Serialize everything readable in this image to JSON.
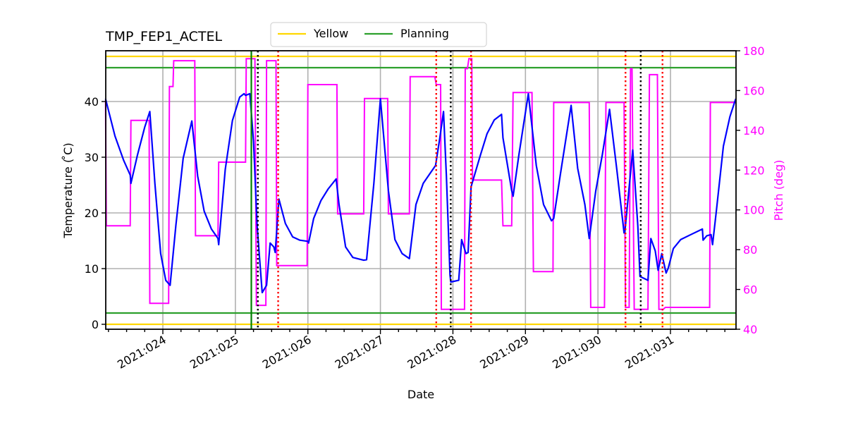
{
  "chart_data": {
    "type": "line",
    "title": "TMP_FEP1_ACTEL",
    "xlabel": "Date",
    "ylabel": "Temperature ($^\\circ$C)",
    "ylabel_display": "Temperature ( ̊C)",
    "ylabel_right": "Pitch (deg)",
    "xlim": [
      23.21,
      31.9
    ],
    "ylim": [
      -1,
      49
    ],
    "ylim_right": [
      40,
      180
    ],
    "grid": true,
    "legend_position": "upper center (above axes)",
    "x_ticks": [
      "2021:024",
      "2021:025",
      "2021:026",
      "2021:027",
      "2021:028",
      "2021:029",
      "2021:030",
      "2021:031"
    ],
    "y_ticks": [
      0,
      10,
      20,
      30,
      40
    ],
    "y_ticks_right": [
      40,
      60,
      80,
      100,
      120,
      140,
      160,
      180
    ],
    "legend": [
      {
        "label": "Yellow",
        "color": "#ffd700"
      },
      {
        "label": "Planning",
        "color": "#2ca02c"
      }
    ],
    "limits": {
      "yellow": [
        0,
        48
      ],
      "planning": [
        2,
        46
      ]
    },
    "vertical_markers": {
      "green_solid": [
        25.22
      ],
      "black_dotted": [
        25.31,
        27.97,
        30.59
      ],
      "red_dotted": [
        25.59,
        27.77,
        28.25,
        30.38,
        30.89
      ]
    },
    "series": [
      {
        "name": "Temperature",
        "axis": "left",
        "color": "#0000ff",
        "x": [
          23.21,
          23.34,
          23.46,
          23.55,
          23.56,
          23.65,
          23.75,
          23.82,
          23.89,
          23.97,
          24.04,
          24.1,
          24.18,
          24.28,
          24.4,
          24.48,
          24.57,
          24.67,
          24.76,
          24.77,
          24.86,
          24.96,
          25.06,
          25.12,
          25.14,
          25.2,
          25.25,
          25.3,
          25.37,
          25.43,
          25.48,
          25.53,
          25.55,
          25.6,
          25.69,
          25.79,
          25.89,
          26.0,
          26.01,
          26.08,
          26.18,
          26.28,
          26.39,
          26.43,
          26.52,
          26.62,
          26.77,
          26.81,
          26.91,
          27.0,
          27.11,
          27.2,
          27.3,
          27.4,
          27.49,
          27.59,
          27.69,
          27.76,
          27.82,
          27.87,
          27.91,
          27.96,
          27.97,
          28.08,
          28.12,
          28.18,
          28.21,
          28.25,
          28.38,
          28.47,
          28.57,
          28.67,
          28.69,
          28.81,
          28.83,
          28.91,
          29.04,
          29.15,
          29.25,
          29.36,
          29.39,
          29.48,
          29.63,
          29.72,
          29.82,
          29.88,
          29.97,
          30.06,
          30.16,
          30.26,
          30.36,
          30.37,
          30.48,
          30.55,
          30.58,
          30.69,
          30.73,
          30.79,
          30.83,
          30.88,
          30.94,
          30.97,
          31.04,
          31.14,
          31.28,
          31.44,
          31.45,
          31.5,
          31.56,
          31.58,
          31.63,
          31.73,
          31.82,
          31.9
        ],
        "values": [
          40.5,
          33.8,
          29.4,
          26.8,
          25.3,
          30.4,
          35.4,
          38.2,
          25.3,
          12.7,
          7.9,
          7.0,
          17.8,
          29.8,
          36.5,
          26.6,
          20.3,
          17.1,
          15.4,
          14.3,
          27.8,
          36.6,
          40.8,
          41.4,
          41.1,
          41.4,
          32.9,
          17.7,
          5.7,
          7.0,
          14.6,
          13.9,
          12.9,
          22.5,
          18.1,
          15.7,
          15.1,
          14.9,
          14.6,
          19.0,
          22.2,
          24.3,
          26.1,
          21.5,
          13.9,
          12.0,
          11.5,
          11.6,
          25.3,
          40.5,
          24.0,
          15.2,
          12.7,
          11.8,
          21.5,
          25.3,
          27.2,
          28.5,
          33.5,
          38.2,
          26.6,
          8.9,
          7.6,
          7.9,
          15.2,
          12.7,
          12.9,
          24.7,
          30.4,
          34.2,
          36.7,
          37.7,
          33.5,
          24.0,
          23.0,
          30.4,
          41.4,
          28.5,
          21.5,
          18.6,
          19.0,
          26.8,
          39.3,
          28.0,
          21.5,
          15.4,
          24.0,
          30.4,
          38.6,
          27.8,
          16.4,
          16.4,
          31.3,
          17.7,
          8.6,
          7.9,
          15.4,
          13.2,
          9.7,
          12.7,
          9.2,
          10.1,
          13.6,
          15.2,
          16.1,
          17.1,
          15.1,
          15.9,
          16.1,
          14.3,
          20.0,
          32.0,
          37.3,
          40.5
        ]
      },
      {
        "name": "Pitch",
        "axis": "right",
        "color": "#ff00ff",
        "x": [
          23.21,
          23.22,
          23.55,
          23.56,
          23.81,
          23.82,
          24.08,
          24.09,
          24.14,
          24.15,
          24.44,
          24.45,
          24.76,
          24.77,
          25.14,
          25.15,
          25.27,
          25.29,
          25.42,
          25.43,
          25.56,
          25.57,
          25.99,
          26.0,
          26.4,
          26.41,
          26.77,
          26.78,
          27.1,
          27.11,
          27.4,
          27.41,
          27.75,
          27.77,
          27.83,
          27.84,
          28.0,
          28.03,
          28.16,
          28.17,
          28.2,
          28.22,
          28.26,
          28.27,
          28.67,
          28.69,
          28.81,
          28.83,
          29.09,
          29.11,
          29.38,
          29.39,
          29.88,
          29.9,
          30.09,
          30.11,
          30.36,
          30.38,
          30.43,
          30.45,
          30.47,
          30.5,
          30.69,
          30.71,
          30.82,
          30.84,
          30.9,
          30.93,
          31.54,
          31.55,
          31.9
        ],
        "values": [
          155,
          92,
          92,
          145,
          145,
          53,
          53,
          162,
          162,
          175,
          175,
          87,
          87,
          124,
          124,
          176,
          176,
          52,
          52,
          175,
          175,
          72,
          72,
          163,
          163,
          98,
          98,
          156,
          156,
          98,
          98,
          167,
          167,
          163,
          163,
          50,
          50,
          50,
          50,
          171,
          171,
          176,
          176,
          115,
          115,
          92,
          92,
          159,
          159,
          69,
          69,
          154,
          154,
          51,
          51,
          154,
          154,
          51,
          51,
          171,
          171,
          50,
          50,
          168,
          168,
          50,
          50,
          51,
          51,
          154,
          154
        ]
      }
    ]
  },
  "legend": {
    "items": [
      {
        "label": "Yellow",
        "color": "#ffd700"
      },
      {
        "label": "Planning",
        "color": "#2ca02c"
      }
    ]
  },
  "axes": {
    "title": "TMP_FEP1_ACTEL",
    "xlabel": "Date",
    "ylabel_left": "Temperature ( ̊C)",
    "ylabel_right": "Pitch (deg)",
    "x_ticks": [
      "2021:024",
      "2021:025",
      "2021:026",
      "2021:027",
      "2021:028",
      "2021:029",
      "2021:030",
      "2021:031"
    ],
    "y_ticks_left": [
      "0",
      "10",
      "20",
      "30",
      "40"
    ],
    "y_ticks_right": [
      "40",
      "60",
      "80",
      "100",
      "120",
      "140",
      "160",
      "180"
    ]
  }
}
